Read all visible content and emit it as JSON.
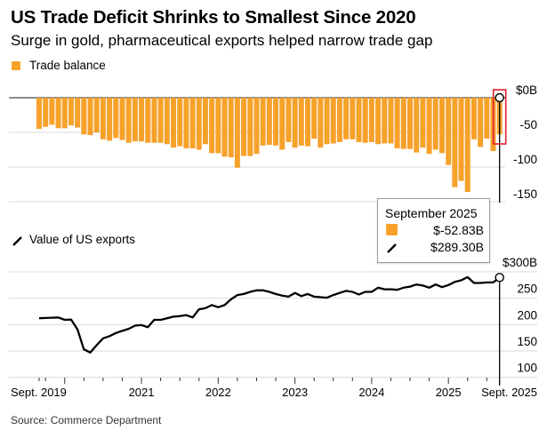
{
  "header": {
    "title": "US Trade Deficit Shrinks to Smallest Since 2020",
    "subtitle": "Surge in gold, pharmaceutical exports helped narrow trade gap"
  },
  "source": "Source: Commerce Department",
  "colors": {
    "bar": "#f7a12b",
    "line": "#000000",
    "highlight": "#e0202a",
    "grid": "#d9d9d9"
  },
  "tooltip": {
    "title": "September 2025",
    "trade_balance": "$-52.83B",
    "exports": "$289.30B",
    "trade_icon": "orange-square-icon",
    "exports_icon": "slash-line-icon"
  },
  "chart_data": [
    {
      "type": "bar",
      "legend": "Trade balance",
      "x_start": "2019-09",
      "x_end": "2025-09",
      "frequency": "monthly",
      "ylim": [
        -150,
        0
      ],
      "y_ticks": [
        "$0B",
        "-50",
        "-100",
        "-150"
      ],
      "y_tick_values": [
        0,
        -50,
        -100,
        -150
      ],
      "grid": true,
      "highlight": "2025-09",
      "values": [
        -45,
        -42,
        -39,
        -44,
        -44,
        -40,
        -43,
        -53,
        -54,
        -50,
        -60,
        -62,
        -58,
        -61,
        -65,
        -63,
        -63,
        -65,
        -65,
        -65,
        -67,
        -72,
        -70,
        -73,
        -73,
        -75,
        -67,
        -80,
        -80,
        -85,
        -86,
        -101,
        -84,
        -84,
        -81,
        -69,
        -68,
        -69,
        -75,
        -64,
        -72,
        -69,
        -70,
        -59,
        -72,
        -67,
        -66,
        -64,
        -60,
        -60,
        -64,
        -65,
        -64,
        -67,
        -66,
        -66,
        -73,
        -74,
        -74,
        -79,
        -72,
        -81,
        -75,
        -80,
        -97,
        -129,
        -120,
        -136,
        -60,
        -71,
        -59,
        -77,
        -52.83
      ]
    },
    {
      "type": "line",
      "legend": "Value of US exports",
      "x_start": "2019-09",
      "x_end": "2025-09",
      "frequency": "monthly",
      "ylim": [
        100,
        300
      ],
      "y_ticks": [
        "$300B",
        "250",
        "200",
        "150",
        "100"
      ],
      "y_tick_values": [
        300,
        250,
        200,
        150,
        100
      ],
      "grid": true,
      "x_tick_labels": [
        "Sept. 2019",
        "2021",
        "2022",
        "2023",
        "2024",
        "2025",
        "Sept. 2025"
      ],
      "values": [
        212,
        212.5,
        213,
        213.5,
        209,
        209.5,
        191,
        153,
        147,
        161,
        174,
        178,
        184,
        188,
        192,
        198,
        199,
        195,
        209,
        209,
        212,
        215,
        216,
        218,
        213.5,
        229,
        231,
        237,
        233,
        237,
        248,
        256,
        258,
        262,
        265,
        265,
        262,
        258,
        255,
        253,
        260,
        254,
        258,
        253,
        252,
        251,
        256,
        260,
        264,
        262,
        257,
        262,
        262,
        270,
        267,
        267,
        266,
        270,
        272,
        276,
        274,
        270,
        276,
        271,
        275,
        281,
        284,
        290,
        279,
        279,
        280,
        280,
        289.3
      ]
    }
  ]
}
